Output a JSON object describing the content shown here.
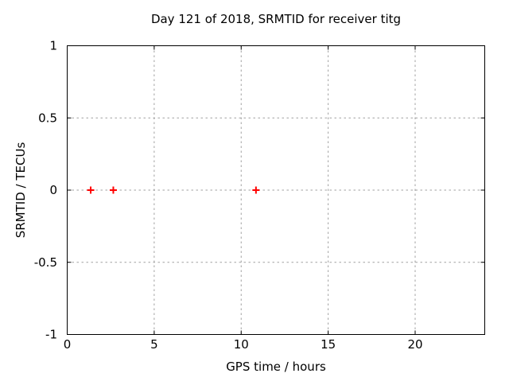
{
  "chart_data": {
    "type": "scatter",
    "title": "Day 121 of 2018, SRMTID for receiver titg",
    "xlabel": "GPS time / hours",
    "ylabel": "SRMTID / TECUs",
    "xlim": [
      0,
      24
    ],
    "ylim": [
      -1,
      1
    ],
    "xticks": {
      "values": [
        0,
        5,
        10,
        15,
        20
      ],
      "labels": [
        "0",
        "5",
        "10",
        "15",
        "20"
      ]
    },
    "yticks": {
      "values": [
        -1,
        -0.5,
        0,
        0.5,
        1
      ],
      "labels": [
        "-1",
        "-0.5",
        "0",
        "0.5",
        "1"
      ]
    },
    "grid": true,
    "grid_style": "dashed",
    "legend": "none",
    "series": [
      {
        "name": "SRMTID",
        "marker": "plus",
        "color": "#ff0000",
        "points": [
          {
            "x": 1.35,
            "y": 0
          },
          {
            "x": 2.65,
            "y": 0
          },
          {
            "x": 10.85,
            "y": 0
          }
        ]
      }
    ],
    "colors": {
      "background": "#ffffff",
      "axis": "#000000",
      "grid": "#a0a0a0",
      "text": "#000000",
      "marker": "#ff0000"
    }
  }
}
